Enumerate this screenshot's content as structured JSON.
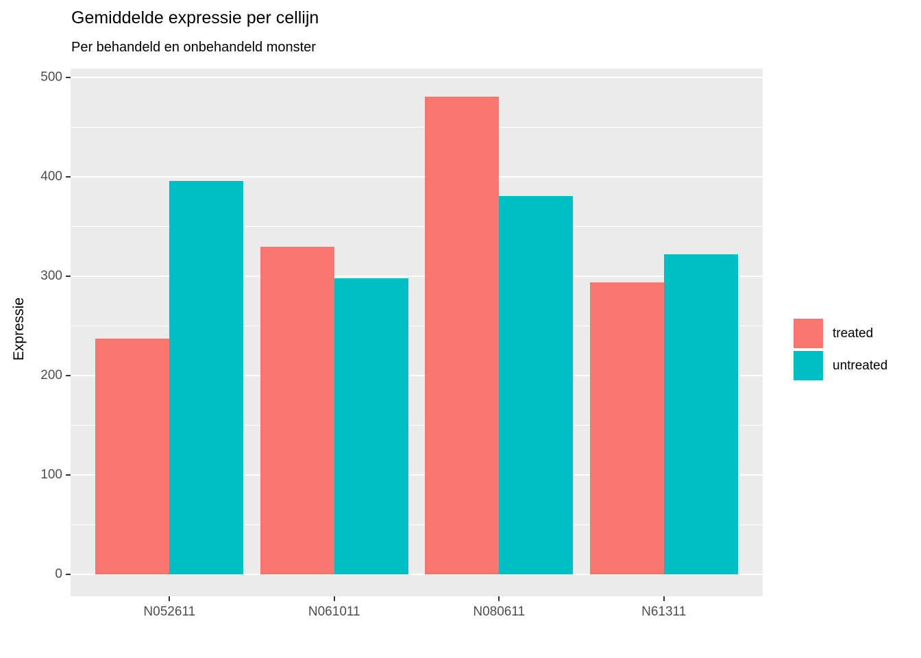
{
  "chart_data": {
    "type": "bar",
    "title": "Gemiddelde expressie per cellijn",
    "subtitle": "Per behandeld en onbehandeld monster",
    "xlabel": "",
    "ylabel": "Expressie",
    "categories": [
      "N052611",
      "N061011",
      "N080611",
      "N61311"
    ],
    "series": [
      {
        "name": "treated",
        "color": "#F8766D",
        "values": [
          237,
          330,
          481,
          294
        ]
      },
      {
        "name": "untreated",
        "color": "#00BFC4",
        "values": [
          396,
          298,
          381,
          322
        ]
      }
    ],
    "ylim": [
      0,
      500
    ],
    "yticks": [
      0,
      100,
      200,
      300,
      400,
      500
    ],
    "grid": "major-and-minor",
    "legend_position": "right",
    "panel_background": "#EBEBEB",
    "grid_color": "#FFFFFF",
    "axis_text_color": "#4D4D4D"
  }
}
